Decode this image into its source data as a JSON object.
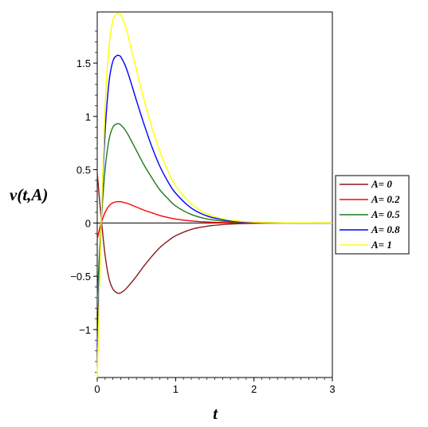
{
  "chart_data": {
    "type": "line",
    "title": "",
    "xlabel": "t",
    "ylabel": "v(t,A)",
    "xlim": [
      0,
      3
    ],
    "ylim": [
      -1.45,
      1.98
    ],
    "grid": false,
    "legend_placement": "right",
    "x_ticks": [
      {
        "value": 0,
        "label": "0"
      },
      {
        "value": 1,
        "label": "1"
      },
      {
        "value": 2,
        "label": "2"
      },
      {
        "value": 3,
        "label": "3"
      }
    ],
    "y_ticks": [
      {
        "value": -1,
        "label": "−1"
      },
      {
        "value": -0.5,
        "label": "−0.5"
      },
      {
        "value": 0,
        "label": "0"
      },
      {
        "value": 0.5,
        "label": "0.5"
      },
      {
        "value": 1,
        "label": "1"
      },
      {
        "value": 1.5,
        "label": "1.5"
      }
    ],
    "series": [
      {
        "name": "A= 0",
        "color": "#8b1a1a",
        "x": [
          0,
          0.05,
          0.1,
          0.15,
          0.2,
          0.25,
          0.28,
          0.3,
          0.35,
          0.4,
          0.5,
          0.6,
          0.7,
          0.8,
          0.9,
          1.0,
          1.2,
          1.4,
          1.6,
          1.8,
          2.0,
          2.3,
          2.6,
          3.0
        ],
        "y": [
          0.47,
          0.05,
          -0.3,
          -0.52,
          -0.62,
          -0.655,
          -0.66,
          -0.655,
          -0.63,
          -0.59,
          -0.5,
          -0.4,
          -0.31,
          -0.23,
          -0.17,
          -0.12,
          -0.06,
          -0.03,
          -0.015,
          -0.007,
          -0.003,
          -0.001,
          0,
          0
        ]
      },
      {
        "name": "A= 0.2",
        "color": "#ff0000",
        "x": [
          0,
          0.05,
          0.1,
          0.15,
          0.2,
          0.25,
          0.28,
          0.3,
          0.35,
          0.4,
          0.5,
          0.6,
          0.7,
          0.8,
          0.9,
          1.0,
          1.2,
          1.4,
          1.6,
          1.8,
          2.0,
          2.3,
          2.6,
          3.0
        ],
        "y": [
          -0.15,
          0.0,
          0.1,
          0.16,
          0.19,
          0.2,
          0.2,
          0.2,
          0.19,
          0.18,
          0.15,
          0.12,
          0.095,
          0.07,
          0.052,
          0.037,
          0.019,
          0.009,
          0.004,
          0.002,
          0.001,
          0,
          0,
          0
        ]
      },
      {
        "name": "A= 0.5",
        "color": "#1e7a1e",
        "x": [
          0,
          0.05,
          0.1,
          0.15,
          0.2,
          0.25,
          0.28,
          0.3,
          0.35,
          0.4,
          0.5,
          0.6,
          0.7,
          0.8,
          0.9,
          1.0,
          1.2,
          1.4,
          1.6,
          1.8,
          2.0,
          2.3,
          2.6,
          3.0
        ],
        "y": [
          -0.7,
          0.0,
          0.5,
          0.78,
          0.9,
          0.93,
          0.93,
          0.92,
          0.88,
          0.82,
          0.68,
          0.54,
          0.42,
          0.31,
          0.23,
          0.16,
          0.08,
          0.038,
          0.018,
          0.008,
          0.004,
          0.001,
          0,
          0
        ]
      },
      {
        "name": "A= 0.8",
        "color": "#0000ff",
        "x": [
          0,
          0.05,
          0.1,
          0.15,
          0.2,
          0.25,
          0.28,
          0.3,
          0.35,
          0.4,
          0.5,
          0.6,
          0.7,
          0.8,
          0.9,
          1.0,
          1.2,
          1.4,
          1.6,
          1.8,
          2.0,
          2.3,
          2.6,
          3.0
        ],
        "y": [
          -1.15,
          0.0,
          0.85,
          1.32,
          1.52,
          1.57,
          1.57,
          1.56,
          1.49,
          1.39,
          1.15,
          0.92,
          0.71,
          0.53,
          0.39,
          0.28,
          0.14,
          0.066,
          0.031,
          0.014,
          0.006,
          0.002,
          0,
          0
        ]
      },
      {
        "name": "A= 1",
        "color": "#ffff00",
        "x": [
          0,
          0.05,
          0.1,
          0.15,
          0.2,
          0.25,
          0.28,
          0.3,
          0.35,
          0.4,
          0.5,
          0.6,
          0.7,
          0.8,
          0.9,
          1.0,
          1.2,
          1.4,
          1.6,
          1.8,
          2.0,
          2.3,
          2.6,
          3.0
        ],
        "y": [
          -1.45,
          0.0,
          1.08,
          1.65,
          1.9,
          1.96,
          1.96,
          1.95,
          1.87,
          1.74,
          1.44,
          1.15,
          0.89,
          0.67,
          0.49,
          0.35,
          0.18,
          0.085,
          0.04,
          0.018,
          0.008,
          0.002,
          0.001,
          0
        ]
      }
    ]
  }
}
